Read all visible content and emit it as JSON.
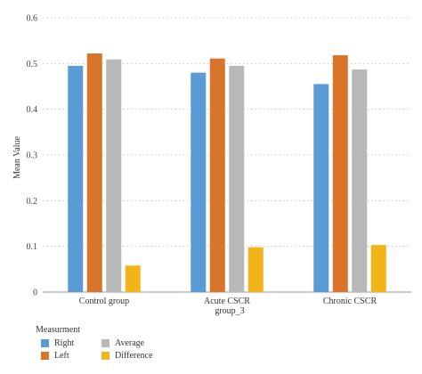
{
  "chart_data": {
    "type": "bar",
    "ylabel": "Mean Value",
    "xlabel_line2": "group_3",
    "ylim": [
      0,
      0.6
    ],
    "yticks": [
      "0",
      "0.1",
      "0.2",
      "0.3",
      "0.4",
      "0.5",
      "0.6"
    ],
    "grid": "horizontal-dotted",
    "categories": [
      "Control group",
      "Acute CSCR",
      "Chronic CSCR"
    ],
    "series": [
      {
        "name": "Right",
        "color": "#5b9bd5",
        "values": [
          0.495,
          0.48,
          0.455
        ]
      },
      {
        "name": "Left",
        "color": "#d9742b",
        "values": [
          0.522,
          0.511,
          0.518
        ]
      },
      {
        "name": "Average",
        "color": "#b8b8b8",
        "values": [
          0.509,
          0.495,
          0.487
        ]
      },
      {
        "name": "Difference",
        "color": "#f2b418",
        "values": [
          0.058,
          0.098,
          0.103
        ]
      }
    ],
    "legend": {
      "title": "Measurment",
      "placement": "bottom-left"
    }
  }
}
